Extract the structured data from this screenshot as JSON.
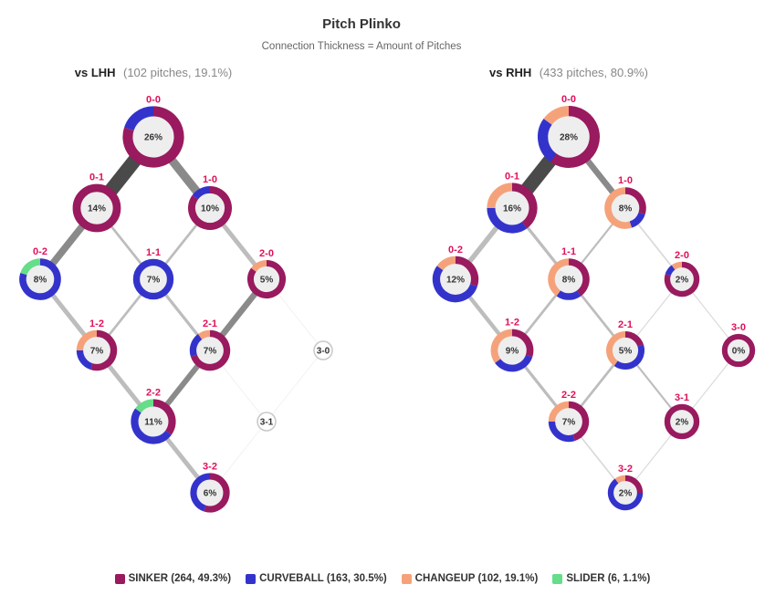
{
  "chart_data": {
    "type": "network",
    "title": "Pitch Plinko",
    "subtitle": "Connection Thickness = Amount of Pitches",
    "colors": {
      "SINKER": "#991a5e",
      "CURVEBALL": "#3333cc",
      "CHANGEUP": "#f5a27a",
      "SLIDER": "#66dd88",
      "edge": "#555555",
      "count": "#e0105a"
    },
    "legend": [
      {
        "pitch": "SINKER",
        "label": "SINKER (264, 49.3%)"
      },
      {
        "pitch": "CURVEBALL",
        "label": "CURVEBALL (163, 30.5%)"
      },
      {
        "pitch": "CHANGEUP",
        "label": "CHANGEUP (102, 19.1%)"
      },
      {
        "pitch": "SLIDER",
        "label": "SLIDER (6, 1.1%)"
      }
    ],
    "panels": [
      {
        "title_bold": "vs LHH",
        "title_light": "(102 pitches, 19.1%)",
        "nodes": [
          {
            "count": "0-0",
            "pct": "26%",
            "share": 0.26,
            "mix": {
              "SINKER": 0.8,
              "CURVEBALL": 0.2,
              "CHANGEUP": 0,
              "SLIDER": 0
            }
          },
          {
            "count": "0-1",
            "pct": "14%",
            "share": 0.14,
            "mix": {
              "SINKER": 1.0,
              "CURVEBALL": 0,
              "CHANGEUP": 0,
              "SLIDER": 0
            }
          },
          {
            "count": "1-0",
            "pct": "10%",
            "share": 0.1,
            "mix": {
              "SINKER": 0.85,
              "CURVEBALL": 0.15,
              "CHANGEUP": 0,
              "SLIDER": 0
            }
          },
          {
            "count": "0-2",
            "pct": "8%",
            "share": 0.08,
            "mix": {
              "SINKER": 0,
              "CURVEBALL": 0.8,
              "CHANGEUP": 0,
              "SLIDER": 0.2
            }
          },
          {
            "count": "1-1",
            "pct": "7%",
            "share": 0.07,
            "mix": {
              "SINKER": 0,
              "CURVEBALL": 1.0,
              "CHANGEUP": 0,
              "SLIDER": 0
            }
          },
          {
            "count": "2-0",
            "pct": "5%",
            "share": 0.05,
            "mix": {
              "SINKER": 0.85,
              "CURVEBALL": 0,
              "CHANGEUP": 0.15,
              "SLIDER": 0
            }
          },
          {
            "count": "1-2",
            "pct": "7%",
            "share": 0.07,
            "mix": {
              "SINKER": 0.55,
              "CURVEBALL": 0.2,
              "CHANGEUP": 0.25,
              "SLIDER": 0
            }
          },
          {
            "count": "2-1",
            "pct": "7%",
            "share": 0.07,
            "mix": {
              "SINKER": 0.7,
              "CURVEBALL": 0.2,
              "CHANGEUP": 0.1,
              "SLIDER": 0
            }
          },
          {
            "count": "3-0",
            "pct": "3-0",
            "share": 0,
            "mix": {
              "SINKER": 0,
              "CURVEBALL": 0,
              "CHANGEUP": 0,
              "SLIDER": 0
            }
          },
          {
            "count": "2-2",
            "pct": "11%",
            "share": 0.11,
            "mix": {
              "SINKER": 0.35,
              "CURVEBALL": 0.5,
              "CHANGEUP": 0,
              "SLIDER": 0.15
            }
          },
          {
            "count": "3-1",
            "pct": "3-1",
            "share": 0,
            "mix": {
              "SINKER": 0,
              "CURVEBALL": 0,
              "CHANGEUP": 0,
              "SLIDER": 0
            }
          },
          {
            "count": "3-2",
            "pct": "6%",
            "share": 0.06,
            "mix": {
              "SINKER": 0.55,
              "CURVEBALL": 0.45,
              "CHANGEUP": 0,
              "SLIDER": 0
            }
          }
        ],
        "edges": [
          {
            "from": "0-0",
            "to": "0-1",
            "weight": 0.28
          },
          {
            "from": "0-0",
            "to": "1-0",
            "weight": 0.17
          },
          {
            "from": "0-1",
            "to": "0-2",
            "weight": 0.14
          },
          {
            "from": "0-1",
            "to": "1-1",
            "weight": 0.05
          },
          {
            "from": "1-0",
            "to": "1-1",
            "weight": 0.05
          },
          {
            "from": "1-0",
            "to": "2-0",
            "weight": 0.09
          },
          {
            "from": "0-2",
            "to": "1-2",
            "weight": 0.09
          },
          {
            "from": "1-1",
            "to": "1-2",
            "weight": 0.05
          },
          {
            "from": "1-1",
            "to": "2-1",
            "weight": 0.06
          },
          {
            "from": "2-0",
            "to": "2-1",
            "weight": 0.12
          },
          {
            "from": "2-0",
            "to": "3-0",
            "weight": 0.005
          },
          {
            "from": "1-2",
            "to": "2-2",
            "weight": 0.09
          },
          {
            "from": "2-1",
            "to": "2-2",
            "weight": 0.11
          },
          {
            "from": "2-1",
            "to": "3-1",
            "weight": 0.005
          },
          {
            "from": "3-0",
            "to": "3-1",
            "weight": 0.005
          },
          {
            "from": "2-2",
            "to": "3-2",
            "weight": 0.09
          },
          {
            "from": "3-1",
            "to": "3-2",
            "weight": 0.005
          }
        ]
      },
      {
        "title_bold": "vs RHH",
        "title_light": "(433 pitches, 80.9%)",
        "nodes": [
          {
            "count": "0-0",
            "pct": "28%",
            "share": 0.28,
            "mix": {
              "SINKER": 0.6,
              "CURVEBALL": 0.25,
              "CHANGEUP": 0.15,
              "SLIDER": 0
            }
          },
          {
            "count": "0-1",
            "pct": "16%",
            "share": 0.16,
            "mix": {
              "SINKER": 0.4,
              "CURVEBALL": 0.35,
              "CHANGEUP": 0.25,
              "SLIDER": 0
            }
          },
          {
            "count": "1-0",
            "pct": "8%",
            "share": 0.08,
            "mix": {
              "SINKER": 0.3,
              "CURVEBALL": 0.15,
              "CHANGEUP": 0.55,
              "SLIDER": 0
            }
          },
          {
            "count": "0-2",
            "pct": "12%",
            "share": 0.12,
            "mix": {
              "SINKER": 0.3,
              "CURVEBALL": 0.55,
              "CHANGEUP": 0.15,
              "SLIDER": 0
            }
          },
          {
            "count": "1-1",
            "pct": "8%",
            "share": 0.08,
            "mix": {
              "SINKER": 0.4,
              "CURVEBALL": 0.2,
              "CHANGEUP": 0.4,
              "SLIDER": 0
            }
          },
          {
            "count": "2-0",
            "pct": "2%",
            "share": 0.02,
            "mix": {
              "SINKER": 0.8,
              "CURVEBALL": 0.1,
              "CHANGEUP": 0.1,
              "SLIDER": 0
            }
          },
          {
            "count": "1-2",
            "pct": "9%",
            "share": 0.09,
            "mix": {
              "SINKER": 0.3,
              "CURVEBALL": 0.35,
              "CHANGEUP": 0.35,
              "SLIDER": 0
            }
          },
          {
            "count": "2-1",
            "pct": "5%",
            "share": 0.05,
            "mix": {
              "SINKER": 0.2,
              "CURVEBALL": 0.4,
              "CHANGEUP": 0.4,
              "SLIDER": 0
            }
          },
          {
            "count": "3-0",
            "pct": "0%",
            "share": 0.003,
            "mix": {
              "SINKER": 1.0,
              "CURVEBALL": 0,
              "CHANGEUP": 0,
              "SLIDER": 0
            }
          },
          {
            "count": "2-2",
            "pct": "7%",
            "share": 0.07,
            "mix": {
              "SINKER": 0.45,
              "CURVEBALL": 0.3,
              "CHANGEUP": 0.25,
              "SLIDER": 0
            }
          },
          {
            "count": "3-1",
            "pct": "2%",
            "share": 0.02,
            "mix": {
              "SINKER": 1.0,
              "CURVEBALL": 0,
              "CHANGEUP": 0,
              "SLIDER": 0
            }
          },
          {
            "count": "3-2",
            "pct": "2%",
            "share": 0.02,
            "mix": {
              "SINKER": 0.25,
              "CURVEBALL": 0.65,
              "CHANGEUP": 0.1,
              "SLIDER": 0
            }
          }
        ],
        "edges": [
          {
            "from": "0-0",
            "to": "0-1",
            "weight": 0.28
          },
          {
            "from": "0-0",
            "to": "1-0",
            "weight": 0.12
          },
          {
            "from": "0-1",
            "to": "0-2",
            "weight": 0.1
          },
          {
            "from": "0-1",
            "to": "1-1",
            "weight": 0.06
          },
          {
            "from": "1-0",
            "to": "1-1",
            "weight": 0.04
          },
          {
            "from": "1-0",
            "to": "2-0",
            "weight": 0.03
          },
          {
            "from": "0-2",
            "to": "1-2",
            "weight": 0.08
          },
          {
            "from": "1-1",
            "to": "1-2",
            "weight": 0.05
          },
          {
            "from": "1-1",
            "to": "2-1",
            "weight": 0.05
          },
          {
            "from": "2-0",
            "to": "2-1",
            "weight": 0.02
          },
          {
            "from": "2-0",
            "to": "3-0",
            "weight": 0.02
          },
          {
            "from": "1-2",
            "to": "2-2",
            "weight": 0.06
          },
          {
            "from": "2-1",
            "to": "2-2",
            "weight": 0.05
          },
          {
            "from": "2-1",
            "to": "3-1",
            "weight": 0.04
          },
          {
            "from": "3-0",
            "to": "3-1",
            "weight": 0.02
          },
          {
            "from": "2-2",
            "to": "3-2",
            "weight": 0.03
          },
          {
            "from": "3-1",
            "to": "3-2",
            "weight": 0.02
          }
        ]
      }
    ]
  }
}
